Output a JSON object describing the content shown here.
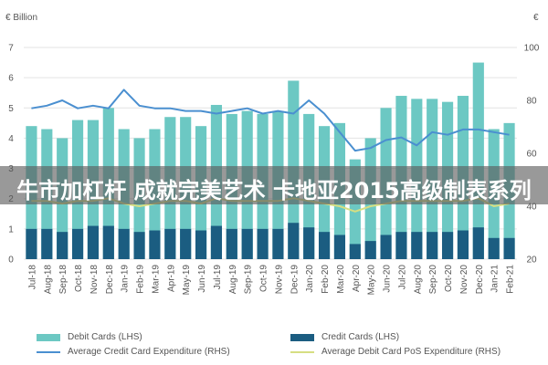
{
  "chart_data": {
    "type": "bar",
    "left_axis_unit": "€ Billion",
    "right_axis_unit": "€",
    "left_ylim": [
      0,
      7
    ],
    "right_ylim": [
      20,
      100
    ],
    "left_ticks": [
      "0",
      "1",
      "2",
      "3",
      "4",
      "5",
      "6",
      "7"
    ],
    "right_ticks": [
      "20",
      "40",
      "60",
      "80",
      "100"
    ],
    "categories": [
      "Jul-18",
      "Aug-18",
      "Sep-18",
      "Oct-18",
      "Nov-18",
      "Dec-18",
      "Jan-19",
      "Feb-19",
      "Mar-19",
      "Apr-19",
      "May-19",
      "Jun-19",
      "Jul-19",
      "Aug-19",
      "Sep-19",
      "Oct-19",
      "Nov-19",
      "Dec-19",
      "Jan-20",
      "Feb-20",
      "Mar-20",
      "Apr-20",
      "May-20",
      "Jun-20",
      "Jul-20",
      "Aug-20",
      "Sep-20",
      "Oct-20",
      "Nov-20",
      "Dec-20",
      "Jan-21",
      "Feb-21"
    ],
    "series": [
      {
        "name": "Debit Cards (LHS)",
        "type": "bar",
        "axis": "left",
        "color": "#6cc8c3",
        "values": [
          4.4,
          4.3,
          4.0,
          4.6,
          4.6,
          5.0,
          4.3,
          4.0,
          4.3,
          4.7,
          4.7,
          4.4,
          5.1,
          4.8,
          4.9,
          4.8,
          4.9,
          5.9,
          4.8,
          4.4,
          4.5,
          3.3,
          4.0,
          5.0,
          5.4,
          5.3,
          5.3,
          5.2,
          5.4,
          6.5,
          4.3,
          4.5
        ]
      },
      {
        "name": "Credit Cards (LHS)",
        "type": "bar",
        "axis": "left",
        "color": "#1b5d81",
        "values": [
          1.0,
          1.0,
          0.9,
          1.0,
          1.1,
          1.1,
          1.0,
          0.9,
          0.95,
          1.0,
          1.0,
          0.95,
          1.1,
          1.0,
          1.0,
          1.0,
          1.0,
          1.2,
          1.05,
          0.9,
          0.8,
          0.5,
          0.6,
          0.8,
          0.9,
          0.9,
          0.9,
          0.9,
          0.95,
          1.05,
          0.7,
          0.7
        ]
      },
      {
        "name": "Average Credit Card Expenditure (RHS)",
        "type": "line",
        "axis": "right",
        "color": "#4a8fd0",
        "values": [
          77,
          78,
          80,
          77,
          78,
          77,
          84,
          78,
          77,
          77,
          76,
          76,
          75,
          76,
          77,
          75,
          76,
          75,
          80,
          75,
          68,
          61,
          62,
          65,
          66,
          63,
          68,
          67,
          69,
          69,
          68,
          67
        ]
      },
      {
        "name": "Average Debit Card PoS Expenditure (RHS)",
        "type": "line",
        "axis": "right",
        "color": "#d6de82",
        "values": [
          42,
          42,
          41,
          42,
          42,
          43,
          41,
          40,
          41,
          42,
          42,
          41,
          43,
          42,
          42,
          42,
          42,
          43,
          42,
          41,
          40,
          38,
          40,
          41,
          42,
          42,
          42,
          42,
          42,
          43,
          40,
          41
        ]
      }
    ]
  },
  "overlay": {
    "caption": "牛市加杠杆 成就完美艺术 卡地亚2015高级制表系列"
  }
}
